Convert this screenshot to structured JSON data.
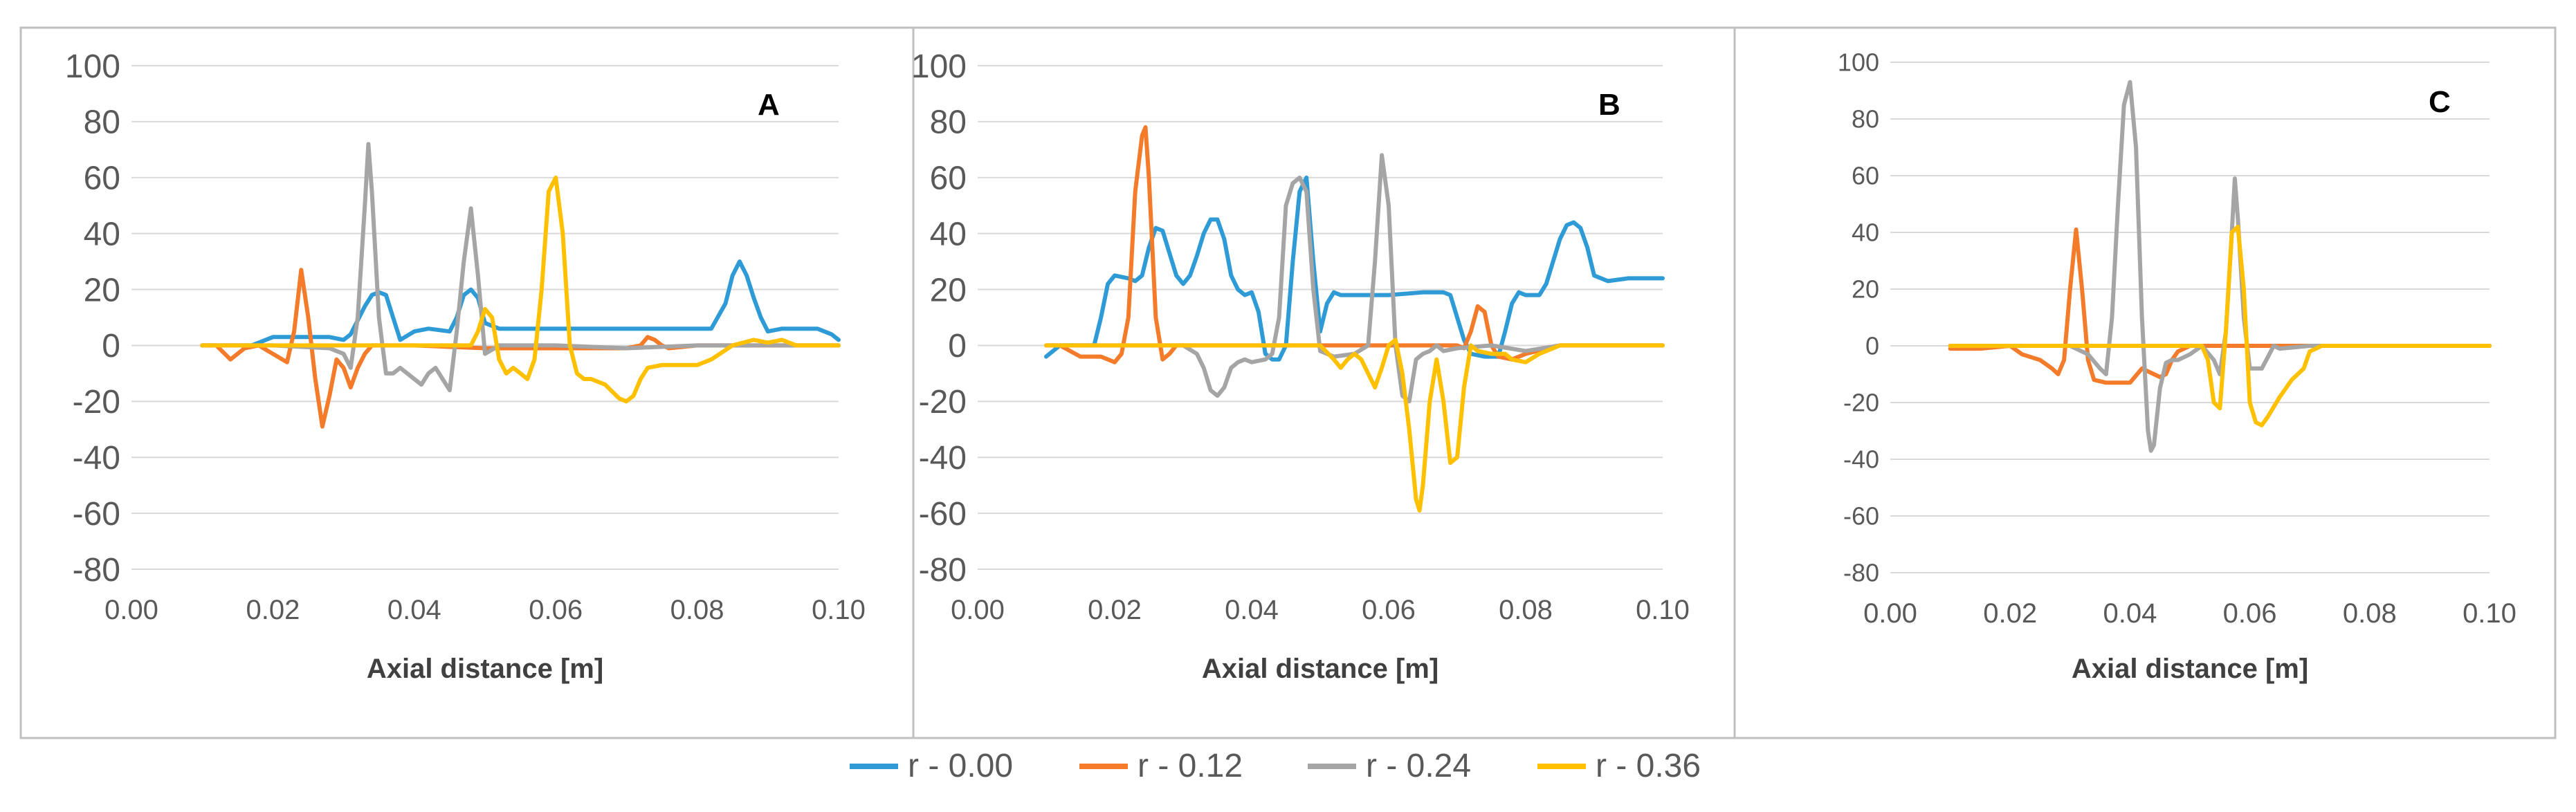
{
  "colors": {
    "series": [
      "#2E9BD6",
      "#F47B2A",
      "#A5A5A5",
      "#FFC000"
    ],
    "grid": "#D9D9D9",
    "axis_text": "#595959",
    "panel_border": "#BFBFBF"
  },
  "legend": {
    "position": "bottom-center"
  },
  "chart_data": [
    {
      "type": "line",
      "title": "A",
      "xlabel": "Axial distance [m]",
      "ylabel": "",
      "xlim": [
        0,
        0.1
      ],
      "ylim": [
        -80,
        100
      ],
      "xticks": [
        "0.00",
        "0.02",
        "0.04",
        "0.06",
        "0.08",
        "0.10"
      ],
      "yticks": [
        "-80",
        "-60",
        "-40",
        "-20",
        "0",
        "20",
        "40",
        "60",
        "80",
        "100"
      ],
      "grid": "horizontal",
      "series": [
        {
          "name": "r - 0.00",
          "x": [
            0.01,
            0.017,
            0.018,
            0.02,
            0.022,
            0.025,
            0.028,
            0.03,
            0.031,
            0.033,
            0.034,
            0.035,
            0.036,
            0.037,
            0.038,
            0.04,
            0.042,
            0.045,
            0.046,
            0.047,
            0.048,
            0.049,
            0.05,
            0.052,
            0.06,
            0.07,
            0.08,
            0.082,
            0.084,
            0.085,
            0.086,
            0.087,
            0.088,
            0.089,
            0.09,
            0.092,
            0.095,
            0.097,
            0.099,
            0.1
          ],
          "y": [
            0,
            0,
            1,
            3,
            3,
            3,
            3,
            2,
            4,
            14,
            18,
            19,
            18,
            10,
            2,
            5,
            6,
            5,
            10,
            18,
            20,
            17,
            8,
            6,
            6,
            6,
            6,
            6,
            15,
            25,
            30,
            25,
            17,
            10,
            5,
            6,
            6,
            6,
            4,
            2
          ]
        },
        {
          "name": "r - 0.12",
          "x": [
            0.01,
            0.012,
            0.014,
            0.016,
            0.018,
            0.02,
            0.022,
            0.023,
            0.024,
            0.025,
            0.026,
            0.027,
            0.028,
            0.029,
            0.03,
            0.031,
            0.032,
            0.033,
            0.034,
            0.036,
            0.04,
            0.05,
            0.06,
            0.07,
            0.072,
            0.073,
            0.074,
            0.075,
            0.076,
            0.08,
            0.1
          ],
          "y": [
            0,
            0,
            -5,
            -1,
            0,
            -3,
            -6,
            5,
            27,
            10,
            -12,
            -29,
            -18,
            -5,
            -8,
            -15,
            -8,
            -3,
            0,
            0,
            0,
            -1,
            -1,
            -1,
            0,
            3,
            2,
            0,
            -1,
            0,
            0
          ]
        },
        {
          "name": "r - 0.24",
          "x": [
            0.01,
            0.02,
            0.028,
            0.03,
            0.031,
            0.032,
            0.033,
            0.0335,
            0.034,
            0.035,
            0.036,
            0.037,
            0.038,
            0.039,
            0.04,
            0.041,
            0.042,
            0.043,
            0.044,
            0.045,
            0.046,
            0.047,
            0.048,
            0.049,
            0.05,
            0.052,
            0.06,
            0.07,
            0.08,
            0.09,
            0.1
          ],
          "y": [
            0,
            0,
            -1,
            -3,
            -8,
            10,
            50,
            72,
            55,
            10,
            -10,
            -10,
            -8,
            -10,
            -12,
            -14,
            -10,
            -8,
            -12,
            -16,
            5,
            30,
            49,
            25,
            -3,
            0,
            0,
            -1,
            0,
            0,
            0
          ]
        },
        {
          "name": "r - 0.36",
          "x": [
            0.01,
            0.045,
            0.048,
            0.049,
            0.05,
            0.051,
            0.052,
            0.053,
            0.054,
            0.055,
            0.056,
            0.057,
            0.058,
            0.059,
            0.06,
            0.061,
            0.062,
            0.063,
            0.064,
            0.065,
            0.067,
            0.069,
            0.07,
            0.071,
            0.072,
            0.073,
            0.075,
            0.08,
            0.082,
            0.085,
            0.088,
            0.09,
            0.092,
            0.094,
            0.096,
            0.1
          ],
          "y": [
            0,
            0,
            0,
            5,
            13,
            10,
            -5,
            -10,
            -8,
            -10,
            -12,
            -5,
            20,
            55,
            60,
            40,
            0,
            -10,
            -12,
            -12,
            -14,
            -19,
            -20,
            -18,
            -12,
            -8,
            -7,
            -7,
            -5,
            0,
            2,
            1,
            2,
            0,
            0,
            0
          ]
        }
      ]
    },
    {
      "type": "line",
      "title": "B",
      "xlabel": "Axial distance [m]",
      "ylabel": "",
      "xlim": [
        0,
        0.1
      ],
      "ylim": [
        -80,
        100
      ],
      "xticks": [
        "0.00",
        "0.02",
        "0.04",
        "0.06",
        "0.08",
        "0.10"
      ],
      "yticks": [
        "-80",
        "-60",
        "-40",
        "-20",
        "0",
        "20",
        "40",
        "60",
        "80",
        "100"
      ],
      "grid": "horizontal",
      "series": [
        {
          "name": "r - 0.00",
          "x": [
            0.01,
            0.012,
            0.015,
            0.017,
            0.018,
            0.019,
            0.02,
            0.022,
            0.023,
            0.024,
            0.025,
            0.026,
            0.027,
            0.028,
            0.029,
            0.03,
            0.031,
            0.032,
            0.033,
            0.034,
            0.035,
            0.036,
            0.037,
            0.038,
            0.039,
            0.04,
            0.041,
            0.042,
            0.043,
            0.044,
            0.045,
            0.046,
            0.047,
            0.048,
            0.049,
            0.05,
            0.051,
            0.052,
            0.053,
            0.055,
            0.057,
            0.06,
            0.065,
            0.068,
            0.069,
            0.07,
            0.071,
            0.072,
            0.074,
            0.076,
            0.077,
            0.078,
            0.079,
            0.08,
            0.082,
            0.083,
            0.084,
            0.085,
            0.086,
            0.087,
            0.088,
            0.089,
            0.09,
            0.092,
            0.095,
            0.1
          ],
          "y": [
            -4,
            0,
            0,
            0,
            10,
            22,
            25,
            24,
            23,
            25,
            35,
            42,
            41,
            33,
            25,
            22,
            25,
            32,
            40,
            45,
            45,
            38,
            25,
            20,
            18,
            19,
            12,
            -3,
            -5,
            -5,
            0,
            30,
            55,
            60,
            30,
            5,
            15,
            19,
            18,
            18,
            18,
            18,
            19,
            19,
            18,
            10,
            2,
            -3,
            -4,
            -4,
            5,
            15,
            19,
            18,
            18,
            22,
            30,
            38,
            43,
            44,
            42,
            35,
            25,
            23,
            24,
            24
          ]
        },
        {
          "name": "r - 0.12",
          "x": [
            0.01,
            0.012,
            0.015,
            0.018,
            0.02,
            0.021,
            0.022,
            0.023,
            0.024,
            0.0245,
            0.025,
            0.026,
            0.027,
            0.028,
            0.029,
            0.03,
            0.035,
            0.04,
            0.045,
            0.05,
            0.055,
            0.06,
            0.065,
            0.07,
            0.071,
            0.072,
            0.073,
            0.074,
            0.075,
            0.076,
            0.078,
            0.08,
            0.085,
            0.1
          ],
          "y": [
            0,
            0,
            -4,
            -4,
            -6,
            -3,
            10,
            55,
            75,
            78,
            60,
            10,
            -5,
            -3,
            0,
            0,
            0,
            0,
            0,
            0,
            0,
            0,
            0,
            0,
            -1,
            5,
            14,
            12,
            0,
            -4,
            -5,
            -3,
            0,
            0
          ]
        },
        {
          "name": "r - 0.24",
          "x": [
            0.01,
            0.028,
            0.03,
            0.032,
            0.033,
            0.034,
            0.035,
            0.036,
            0.037,
            0.038,
            0.039,
            0.04,
            0.042,
            0.043,
            0.044,
            0.045,
            0.046,
            0.047,
            0.048,
            0.049,
            0.05,
            0.052,
            0.055,
            0.057,
            0.058,
            0.059,
            0.06,
            0.061,
            0.062,
            0.063,
            0.064,
            0.065,
            0.066,
            0.067,
            0.068,
            0.07,
            0.075,
            0.08,
            0.085,
            0.1
          ],
          "y": [
            0,
            0,
            0,
            -3,
            -8,
            -16,
            -18,
            -15,
            -8,
            -6,
            -5,
            -6,
            -5,
            -3,
            10,
            50,
            58,
            60,
            55,
            20,
            -2,
            -4,
            -3,
            0,
            30,
            68,
            50,
            0,
            -18,
            -20,
            -5,
            -3,
            -2,
            0,
            -2,
            -1,
            0,
            -2,
            0,
            0
          ]
        },
        {
          "name": "r - 0.36",
          "x": [
            0.01,
            0.04,
            0.045,
            0.048,
            0.05,
            0.052,
            0.053,
            0.054,
            0.055,
            0.056,
            0.057,
            0.058,
            0.059,
            0.06,
            0.061,
            0.062,
            0.063,
            0.064,
            0.0645,
            0.065,
            0.066,
            0.067,
            0.068,
            0.069,
            0.07,
            0.071,
            0.072,
            0.073,
            0.075,
            0.077,
            0.078,
            0.08,
            0.082,
            0.085,
            0.1
          ],
          "y": [
            0,
            0,
            0,
            0,
            0,
            -5,
            -8,
            -5,
            -3,
            -5,
            -10,
            -15,
            -8,
            0,
            2,
            -10,
            -30,
            -55,
            -59,
            -50,
            -20,
            -5,
            -20,
            -42,
            -40,
            -15,
            0,
            -2,
            -3,
            -3,
            -5,
            -6,
            -3,
            0,
            0
          ]
        }
      ]
    },
    {
      "type": "line",
      "title": "C",
      "xlabel": "Axial distance [m]",
      "ylabel": "",
      "xlim": [
        0,
        0.1
      ],
      "ylim": [
        -80,
        100
      ],
      "xticks": [
        "0.00",
        "0.02",
        "0.04",
        "0.06",
        "0.08",
        "0.10"
      ],
      "yticks": [
        "-80",
        "-60",
        "-40",
        "-20",
        "0",
        "20",
        "40",
        "60",
        "80",
        "100"
      ],
      "grid": "horizontal",
      "series": [
        {
          "name": "r - 0.00",
          "x": [
            0.01,
            0.1
          ],
          "y": [
            0,
            0
          ]
        },
        {
          "name": "r - 0.12",
          "x": [
            0.01,
            0.015,
            0.02,
            0.022,
            0.025,
            0.027,
            0.028,
            0.029,
            0.03,
            0.031,
            0.032,
            0.033,
            0.034,
            0.036,
            0.038,
            0.04,
            0.042,
            0.044,
            0.045,
            0.046,
            0.047,
            0.048,
            0.05,
            0.055,
            0.1
          ],
          "y": [
            -1,
            -1,
            0,
            -3,
            -5,
            -8,
            -10,
            -5,
            20,
            41,
            20,
            -5,
            -12,
            -13,
            -13,
            -13,
            -8,
            -10,
            -11,
            -10,
            -5,
            -2,
            0,
            0,
            0
          ]
        },
        {
          "name": "r - 0.24",
          "x": [
            0.01,
            0.03,
            0.033,
            0.035,
            0.036,
            0.037,
            0.038,
            0.039,
            0.04,
            0.041,
            0.042,
            0.043,
            0.0435,
            0.044,
            0.045,
            0.046,
            0.047,
            0.048,
            0.05,
            0.052,
            0.054,
            0.055,
            0.056,
            0.057,
            0.0575,
            0.058,
            0.059,
            0.06,
            0.062,
            0.064,
            0.065,
            0.07,
            0.1
          ],
          "y": [
            0,
            0,
            -3,
            -8,
            -10,
            10,
            50,
            85,
            93,
            70,
            10,
            -30,
            -37,
            -35,
            -15,
            -6,
            -5,
            -5,
            -3,
            0,
            -5,
            -10,
            5,
            40,
            59,
            45,
            10,
            -8,
            -8,
            0,
            -1,
            0,
            0
          ]
        },
        {
          "name": "r - 0.36",
          "x": [
            0.01,
            0.05,
            0.052,
            0.053,
            0.054,
            0.055,
            0.056,
            0.057,
            0.058,
            0.059,
            0.06,
            0.061,
            0.062,
            0.063,
            0.065,
            0.067,
            0.069,
            0.07,
            0.072,
            0.1
          ],
          "y": [
            0,
            0,
            0,
            -5,
            -20,
            -22,
            5,
            40,
            42,
            20,
            -20,
            -27,
            -28,
            -25,
            -18,
            -12,
            -8,
            -2,
            0,
            0
          ]
        }
      ]
    }
  ]
}
